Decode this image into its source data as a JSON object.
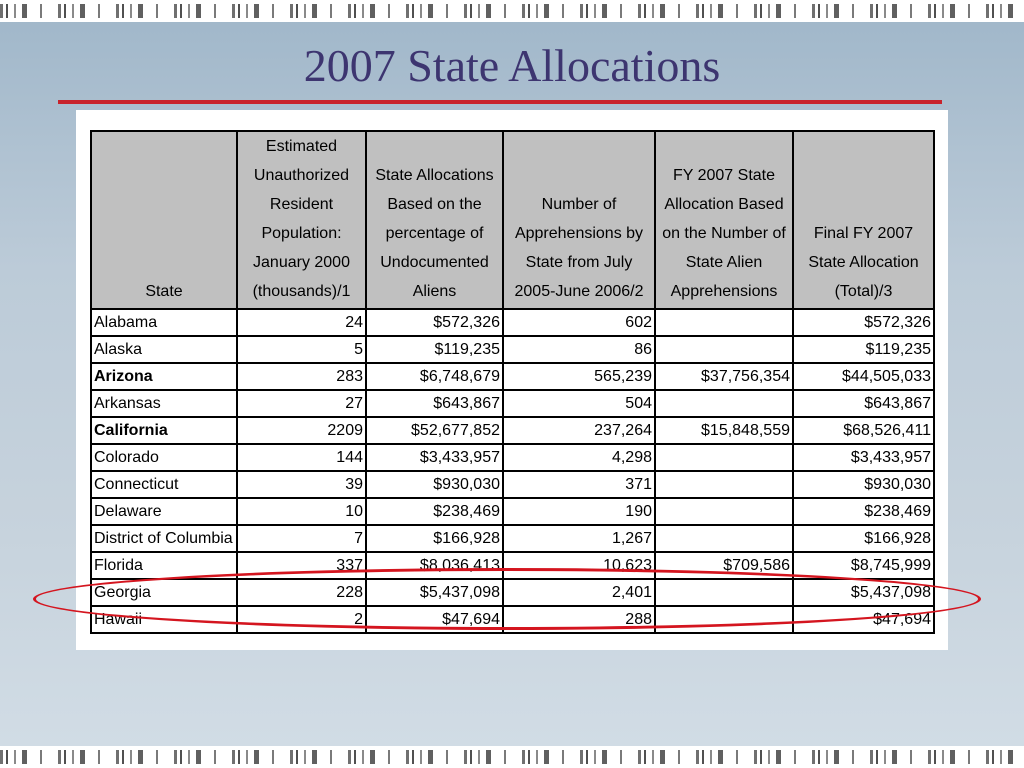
{
  "slide": {
    "title": "2007 State Allocations"
  },
  "table": {
    "headers": [
      "State",
      "Estimated Unauthorized Resident Population: January 2000 (thousands)/1",
      "State Allocations Based on the percentage of Undocumented Aliens",
      "Number of Apprehensions by State from July 2005-June 2006/2",
      "FY 2007 State Allocation Based on the Number of State Alien Apprehensions",
      "Final FY 2007 State Allocation (Total)/3"
    ],
    "rows": [
      {
        "state": "Alabama",
        "population": "24",
        "allocation": "$572,326",
        "apprehensions": "602",
        "fy_alloc": "",
        "final": "$572,326"
      },
      {
        "state": "Alaska",
        "population": "5",
        "allocation": "$119,235",
        "apprehensions": "86",
        "fy_alloc": "",
        "final": "$119,235"
      },
      {
        "state": "Arizona",
        "population": "283",
        "allocation": "$6,748,679",
        "apprehensions": "565,239",
        "fy_alloc": "$37,756,354",
        "final": "$44,505,033"
      },
      {
        "state": "Arkansas",
        "population": "27",
        "allocation": "$643,867",
        "apprehensions": "504",
        "fy_alloc": "",
        "final": "$643,867"
      },
      {
        "state": "California",
        "population": "2209",
        "allocation": "$52,677,852",
        "apprehensions": "237,264",
        "fy_alloc": "$15,848,559",
        "final": "$68,526,411"
      },
      {
        "state": "Colorado",
        "population": "144",
        "allocation": "$3,433,957",
        "apprehensions": "4,298",
        "fy_alloc": "",
        "final": "$3,433,957"
      },
      {
        "state": "Connecticut",
        "population": "39",
        "allocation": "$930,030",
        "apprehensions": "371",
        "fy_alloc": "",
        "final": "$930,030"
      },
      {
        "state": "Delaware",
        "population": "10",
        "allocation": "$238,469",
        "apprehensions": "190",
        "fy_alloc": "",
        "final": "$238,469"
      },
      {
        "state": "District of Columbia",
        "population": "7",
        "allocation": "$166,928",
        "apprehensions": "1,267",
        "fy_alloc": "",
        "final": "$166,928"
      },
      {
        "state": "Florida",
        "population": "337",
        "allocation": "$8,036,413",
        "apprehensions": "10,623",
        "fy_alloc": "$709,586",
        "final": "$8,745,999"
      },
      {
        "state": "Georgia",
        "population": "228",
        "allocation": "$5,437,098",
        "apprehensions": "2,401",
        "fy_alloc": "",
        "final": "$5,437,098"
      },
      {
        "state": "Hawaii",
        "population": "2",
        "allocation": "$47,694",
        "apprehensions": "288",
        "fy_alloc": "",
        "final": "$47,694"
      }
    ]
  },
  "highlight": {
    "row": "Georgia",
    "color": "#d4151f"
  },
  "colors": {
    "title": "#3d3570",
    "rule": "#c8232c",
    "header_bg": "#c0c0c0"
  }
}
